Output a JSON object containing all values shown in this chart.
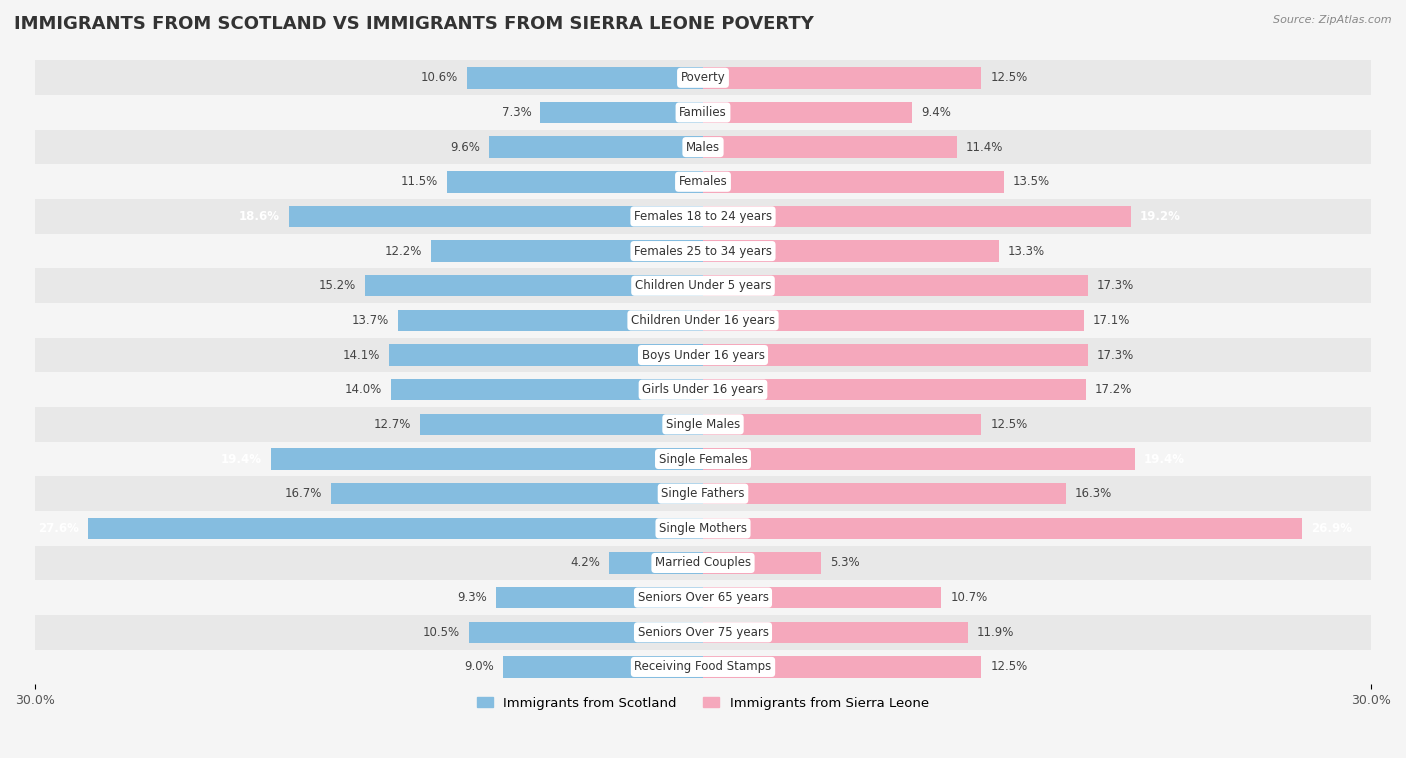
{
  "title": "IMMIGRANTS FROM SCOTLAND VS IMMIGRANTS FROM SIERRA LEONE POVERTY",
  "source": "Source: ZipAtlas.com",
  "categories": [
    "Poverty",
    "Families",
    "Males",
    "Females",
    "Females 18 to 24 years",
    "Females 25 to 34 years",
    "Children Under 5 years",
    "Children Under 16 years",
    "Boys Under 16 years",
    "Girls Under 16 years",
    "Single Males",
    "Single Females",
    "Single Fathers",
    "Single Mothers",
    "Married Couples",
    "Seniors Over 65 years",
    "Seniors Over 75 years",
    "Receiving Food Stamps"
  ],
  "scotland_values": [
    10.6,
    7.3,
    9.6,
    11.5,
    18.6,
    12.2,
    15.2,
    13.7,
    14.1,
    14.0,
    12.7,
    19.4,
    16.7,
    27.6,
    4.2,
    9.3,
    10.5,
    9.0
  ],
  "sierra_leone_values": [
    12.5,
    9.4,
    11.4,
    13.5,
    19.2,
    13.3,
    17.3,
    17.1,
    17.3,
    17.2,
    12.5,
    19.4,
    16.3,
    26.9,
    5.3,
    10.7,
    11.9,
    12.5
  ],
  "scotland_color": "#85bde0",
  "sierra_leone_color": "#f5a8bc",
  "scotland_label": "Immigrants from Scotland",
  "sierra_leone_label": "Immigrants from Sierra Leone",
  "xlim": 30.0,
  "bar_height": 0.62,
  "background_color": "#f5f5f5",
  "row_color_even": "#e8e8e8",
  "row_color_odd": "#f5f5f5",
  "title_fontsize": 13,
  "label_fontsize": 8.5,
  "value_fontsize": 8.5,
  "tick_fontsize": 9
}
